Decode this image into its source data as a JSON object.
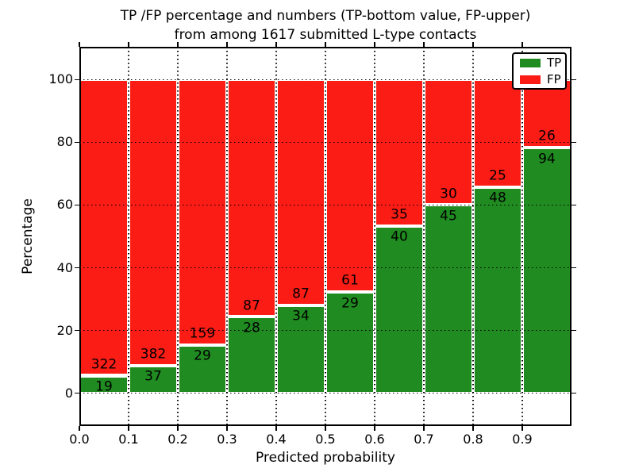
{
  "figure": {
    "title_line1": "TP /FP percentage and numbers (TP-bottom value, FP-upper)",
    "title_line2": "from among 1617 submitted L-type contacts"
  },
  "axes": {
    "xlabel": "Predicted probability",
    "ylabel": "Percentage",
    "x_tick_labels": [
      "0.0",
      "0.1",
      "0.2",
      "0.3",
      "0.4",
      "0.5",
      "0.6",
      "0.7",
      "0.8",
      "0.9"
    ],
    "y_tick_labels": [
      "0",
      "20",
      "40",
      "60",
      "80",
      "100"
    ],
    "y_tick_values": [
      0,
      20,
      40,
      60,
      80,
      100
    ],
    "xlim": [
      0.0,
      1.0
    ],
    "ylim": [
      -10.5,
      110.5
    ],
    "grid": "dotted both axes"
  },
  "legend": {
    "position": "upper right",
    "items": [
      {
        "label": "TP",
        "color": "#208b20"
      },
      {
        "label": "FP",
        "color": "#fb1c15"
      }
    ]
  },
  "chart_data": {
    "type": "bar",
    "stacked": true,
    "normalized": "each bin scaled to 100%",
    "title": "TP /FP percentage and numbers (TP-bottom value, FP-upper) from among 1617 submitted L-type contacts",
    "xlabel": "Predicted probability",
    "ylabel": "Percentage",
    "bin_width": 0.1,
    "categories": [
      0.0,
      0.1,
      0.2,
      0.3,
      0.4,
      0.5,
      0.6,
      0.7,
      0.8,
      0.9
    ],
    "series": [
      {
        "name": "TP",
        "color": "#208b20",
        "counts": [
          19,
          37,
          29,
          28,
          34,
          29,
          40,
          45,
          48,
          94
        ]
      },
      {
        "name": "FP",
        "color": "#fb1c15",
        "counts": [
          322,
          382,
          159,
          87,
          87,
          61,
          35,
          30,
          25,
          26
        ]
      }
    ],
    "tp_percent_of_bin": [
      5.57,
      8.83,
      15.43,
      24.35,
      28.1,
      32.22,
      53.33,
      60.0,
      65.75,
      78.33
    ],
    "total_contacts": 1617,
    "ylim": [
      -10.5,
      110.5
    ],
    "legend_position": "upper right",
    "grid": true
  }
}
